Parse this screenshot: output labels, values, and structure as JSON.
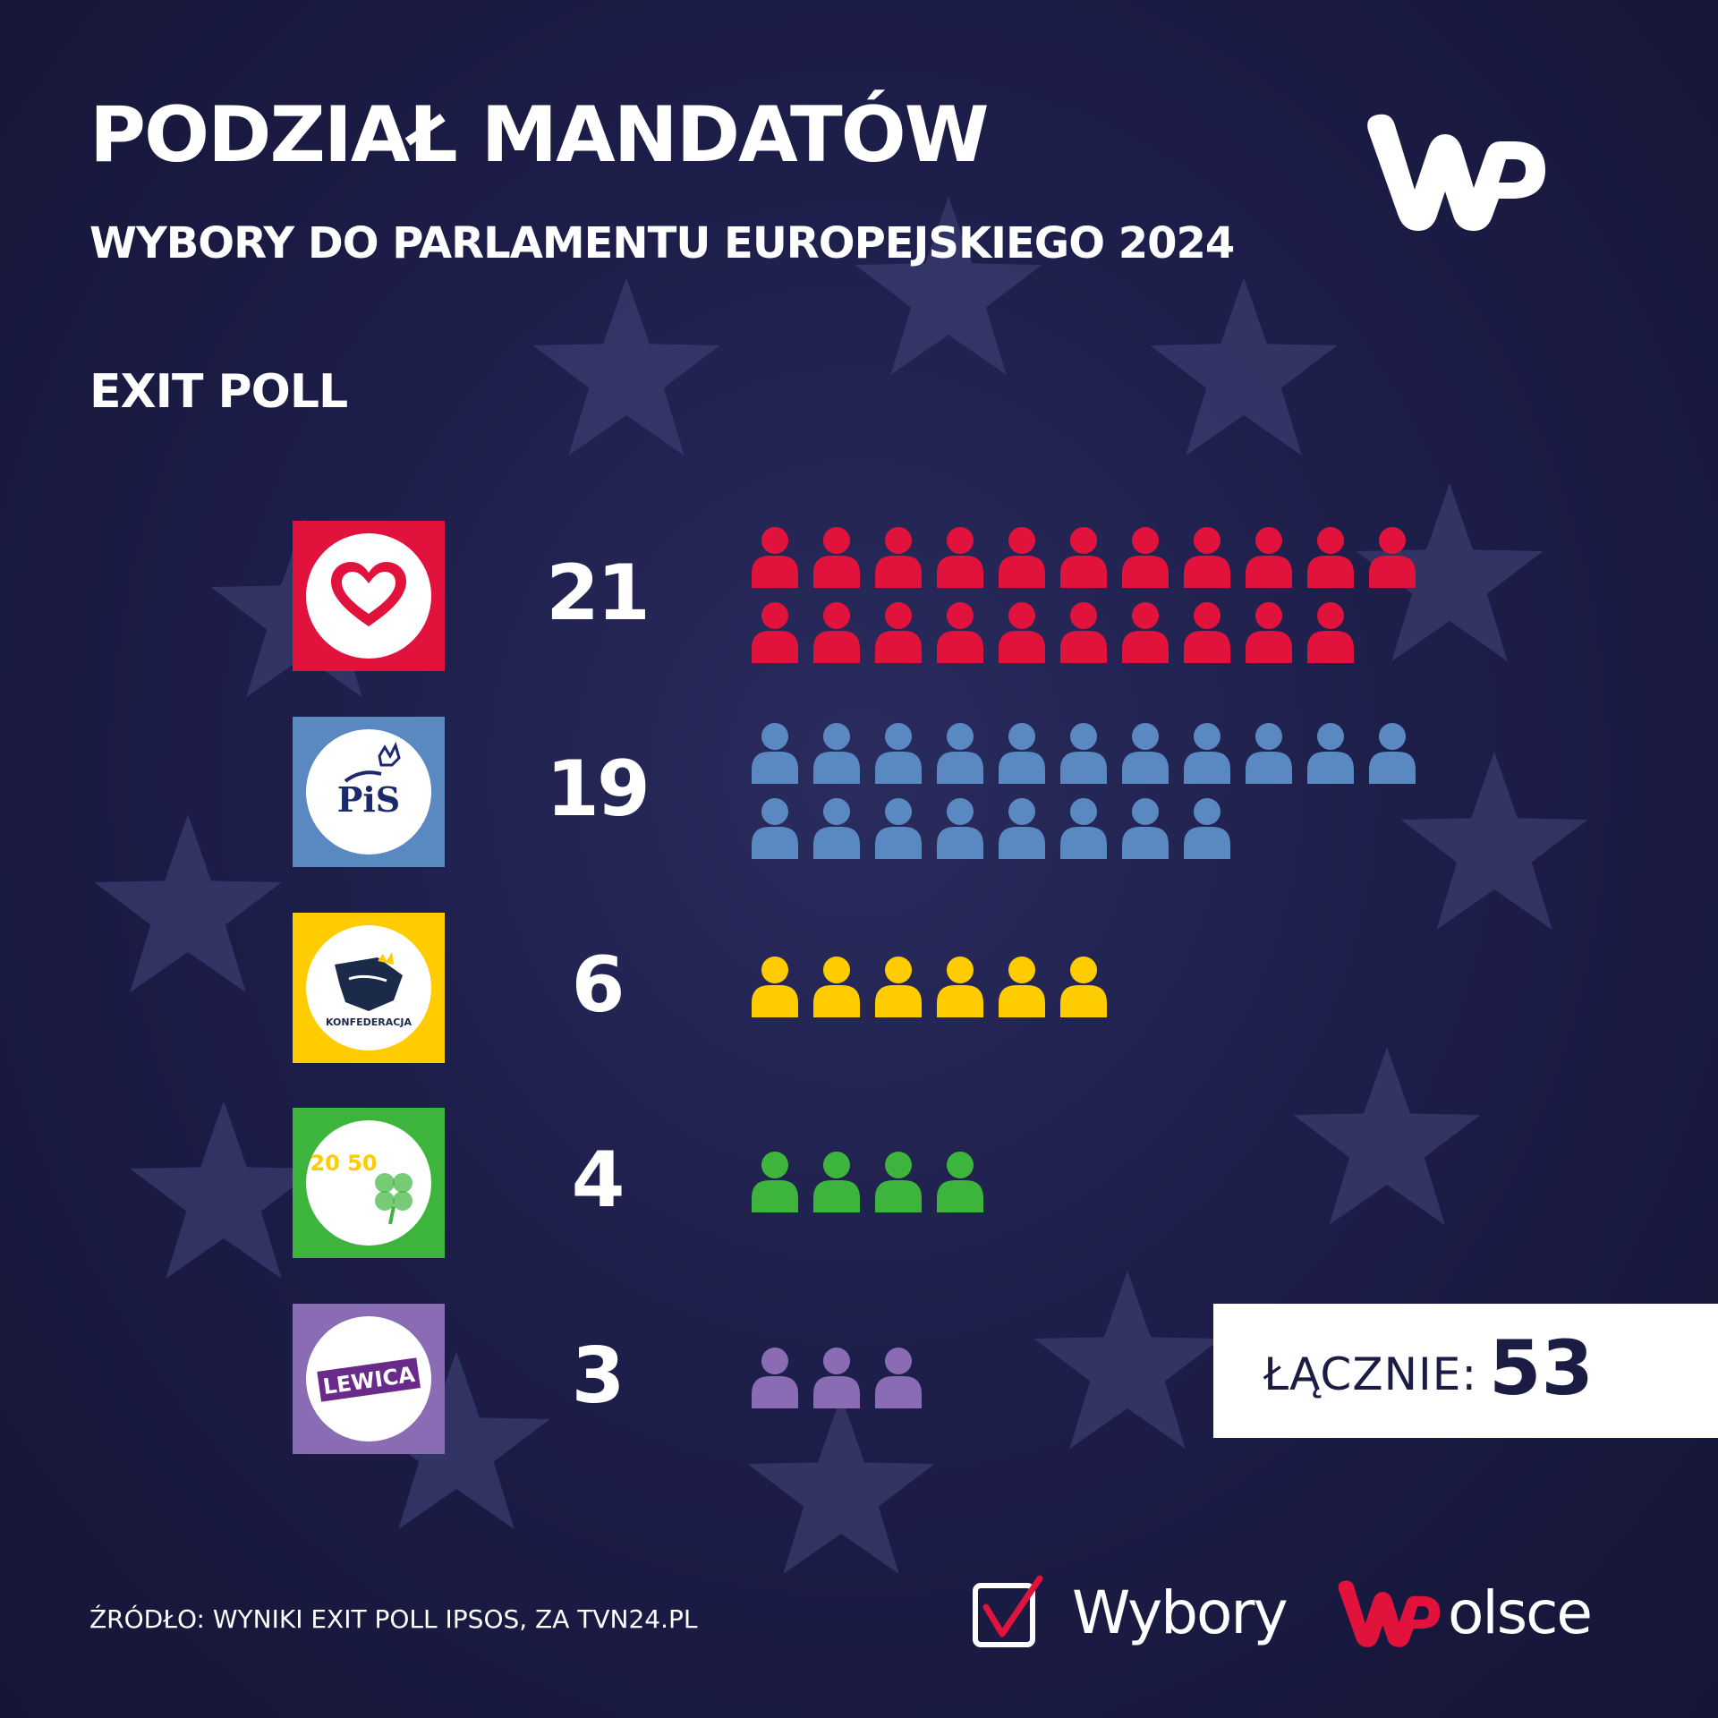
{
  "header": {
    "title": "PODZIAŁ MANDATÓW",
    "subtitle": "WYBORY DO PARLAMENTU EUROPEJSKIEGO 2024",
    "label": "EXIT POLL",
    "logo_icon": "wp-logo-icon"
  },
  "colors": {
    "background": "#1d1e4a",
    "star": "#3a3c6e",
    "ko": "#e1123c",
    "pis": "#5a88c0",
    "konfederacja": "#ffcc00",
    "trzecia_droga": "#3db43c",
    "lewica": "#8a6cb4"
  },
  "chart_data": {
    "type": "pictogram",
    "unit": "seat",
    "series": [
      {
        "logo_icon": "heart-logo-icon",
        "value": 21,
        "value_label": "21",
        "color": "#e1123c"
      },
      {
        "logo_icon": "pis-logo-icon",
        "logo_text": "PiS",
        "value": 19,
        "value_label": "19",
        "color": "#5a88c0"
      },
      {
        "logo_icon": "konfederacja-logo-icon",
        "logo_text": "KONFEDERACJA",
        "value": 6,
        "value_label": "6",
        "color": "#ffcc00"
      },
      {
        "logo_icon": "polska2050-clover-logo-icon",
        "logo_text": "20 50",
        "value": 4,
        "value_label": "4",
        "color": "#3db43c"
      },
      {
        "logo_icon": "lewica-logo-icon",
        "logo_text": "LEWICA",
        "value": 3,
        "value_label": "3",
        "color": "#8a6cb4"
      }
    ],
    "seats_per_row": 11,
    "total_label": "ŁĄCZNIE:",
    "total_value": "53"
  },
  "footer": {
    "source": "ŹRÓDŁO: WYNIKI EXIT POLL IPSOS, ZA TVN24.PL",
    "brand_icon": "ballot-check-icon",
    "brand_word": "Wybory",
    "brand_wp_icon": "wp-red-logo-icon",
    "brand_word2": "olsce"
  }
}
